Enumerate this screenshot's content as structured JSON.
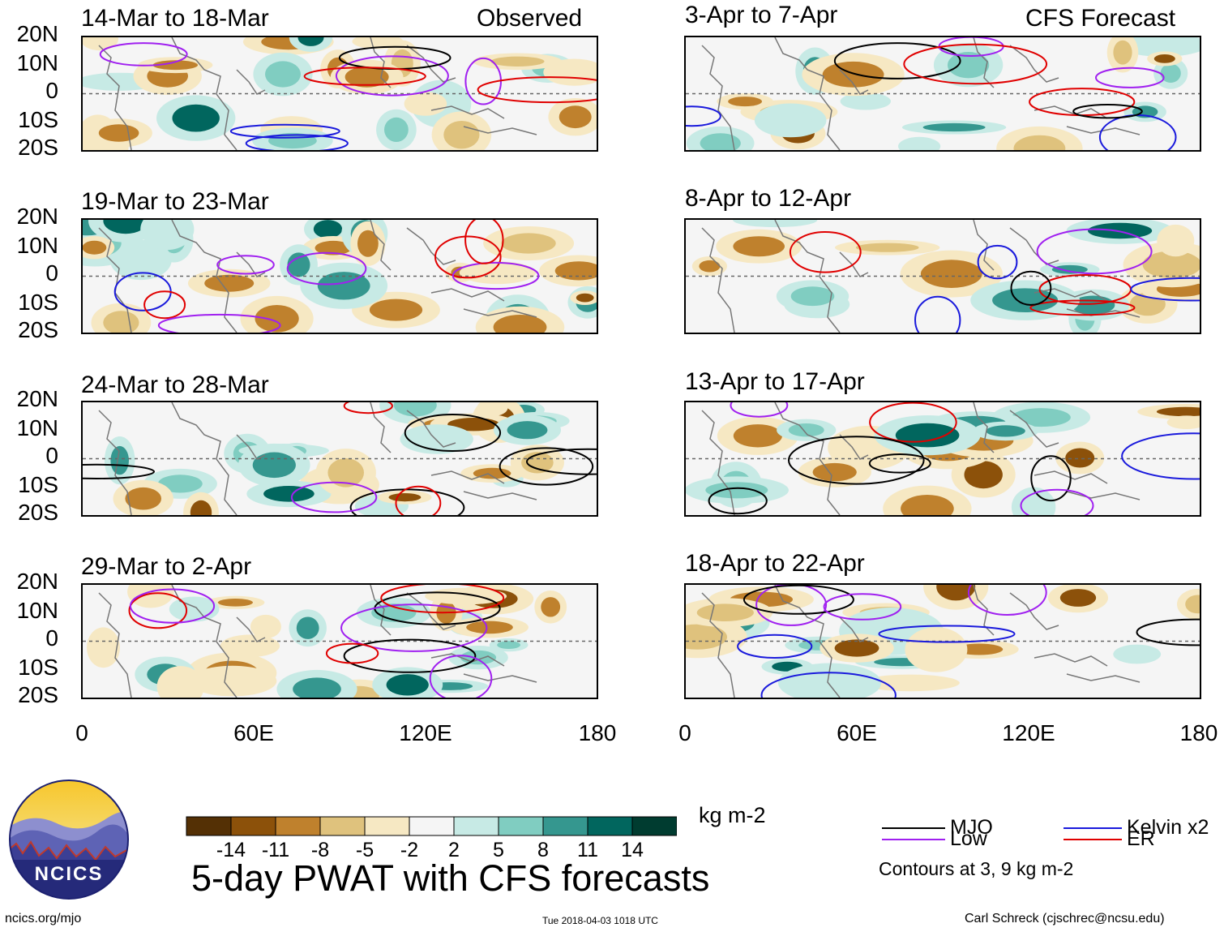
{
  "observed_label": "Observed",
  "forecast_label": "CFS Forecast",
  "lat_labels": [
    "20N",
    "10N",
    "0",
    "10S",
    "20S"
  ],
  "lon_labels": [
    "0",
    "60E",
    "120E",
    "180"
  ],
  "panels": [
    {
      "title": "14-Mar to 18-Mar",
      "kind": "observed"
    },
    {
      "title": "19-Mar to 23-Mar",
      "kind": "observed"
    },
    {
      "title": "24-Mar to 28-Mar",
      "kind": "observed"
    },
    {
      "title": "29-Mar to 2-Apr",
      "kind": "observed"
    },
    {
      "title": "3-Apr to 7-Apr",
      "kind": "forecast"
    },
    {
      "title": "8-Apr to 12-Apr",
      "kind": "forecast"
    },
    {
      "title": "13-Apr to 17-Apr",
      "kind": "forecast"
    },
    {
      "title": "18-Apr to 22-Apr",
      "kind": "forecast"
    }
  ],
  "colorbar": {
    "colors": [
      "#543005",
      "#8c510a",
      "#bf812d",
      "#dfc27d",
      "#f6e8c3",
      "#f5f5f5",
      "#c7eae5",
      "#80cdc1",
      "#35978f",
      "#01665e",
      "#003c30"
    ],
    "ticks": [
      "-14",
      "-11",
      "-8",
      "-5",
      "-2",
      "2",
      "5",
      "8",
      "11",
      "14"
    ],
    "units": "kg m-2"
  },
  "title": "5-day PWAT with CFS forecasts",
  "legend": {
    "items": [
      {
        "label": "MJO",
        "color": "#000000"
      },
      {
        "label": "Kelvin x2",
        "color": "#1a1adc"
      },
      {
        "label": "Low",
        "color": "#a020f0"
      },
      {
        "label": "ER",
        "color": "#e00000"
      }
    ],
    "note": "Contours at 3, 9 kg m-2"
  },
  "logo_text": "NCICS",
  "footer": {
    "url": "ncics.org/mjo",
    "timestamp": "Tue 2018-04-03 1018 UTC",
    "author": "Carl Schreck (cjschrec@ncsu.edu)"
  }
}
